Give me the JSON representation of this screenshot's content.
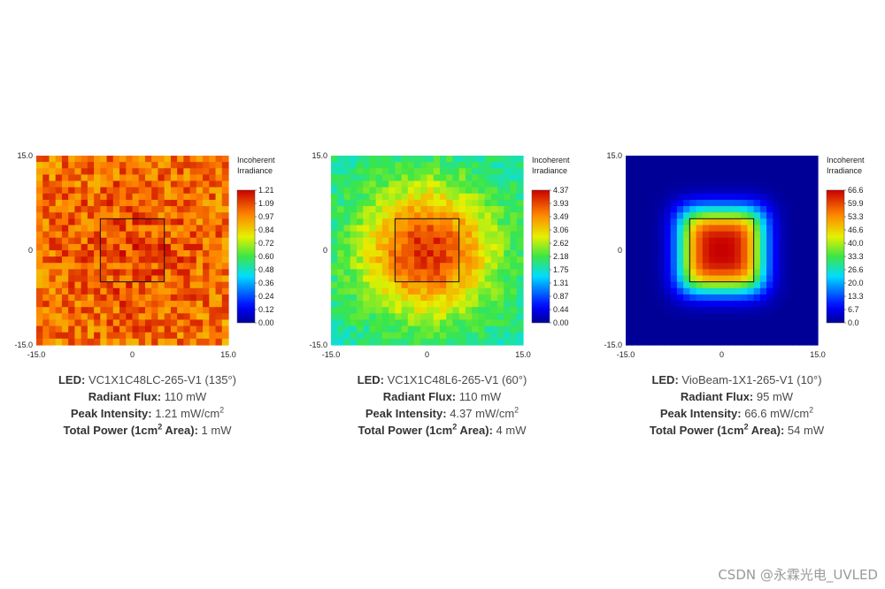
{
  "chart_data": [
    {
      "type": "heatmap",
      "model": "uniform",
      "colorbar_title": [
        "Incoherent",
        "Irradiance"
      ],
      "colorbar_ticks": [
        "1.21",
        "1.09",
        "0.97",
        "0.84",
        "0.72",
        "0.60",
        "0.48",
        "0.36",
        "0.24",
        "0.12",
        "0.00"
      ],
      "zlim": [
        0,
        1.21
      ],
      "xlim": [
        -15,
        15
      ],
      "ylim": [
        -15,
        15
      ],
      "x_ticks": [
        "-15.0",
        "0",
        "15.0"
      ],
      "y_ticks": [
        "15.0",
        "0",
        "-15.0"
      ],
      "target_box": [
        -5,
        5,
        -5,
        5
      ],
      "led_label": "LED:",
      "led_value": "VC1X1C48LC-265-V1 (135°)",
      "flux_label": "Radiant Flux:",
      "flux_value": "110 mW",
      "peak_label": "Peak Intensity:",
      "peak_value": "1.21 mW/cm",
      "peak_sup": "2",
      "power_label_a": "Total Power (1cm",
      "power_sup": "2",
      "power_label_b": " Area):",
      "power_value": "1 mW"
    },
    {
      "type": "heatmap",
      "model": "gaussian",
      "colorbar_title": [
        "Incoherent",
        "Irradiance"
      ],
      "colorbar_ticks": [
        "4.37",
        "3.93",
        "3.49",
        "3.06",
        "2.62",
        "2.18",
        "1.75",
        "1.31",
        "0.87",
        "0.44",
        "0.00"
      ],
      "zlim": [
        0,
        4.37
      ],
      "xlim": [
        -15,
        15
      ],
      "ylim": [
        -15,
        15
      ],
      "x_ticks": [
        "-15.0",
        "0",
        "15.0"
      ],
      "y_ticks": [
        "15.0",
        "0",
        "-15.0"
      ],
      "target_box": [
        -5,
        5,
        -5,
        5
      ],
      "led_label": "LED:",
      "led_value": "VC1X1C48L6-265-V1 (60°)",
      "flux_label": "Radiant Flux:",
      "flux_value": "110 mW",
      "peak_label": "Peak Intensity:",
      "peak_value": "4.37 mW/cm",
      "peak_sup": "2",
      "power_label_a": "Total Power (1cm",
      "power_sup": "2",
      "power_label_b": " Area):",
      "power_value": "4 mW"
    },
    {
      "type": "heatmap",
      "model": "focused",
      "colorbar_title": [
        "Incoherent",
        "Irradiance"
      ],
      "colorbar_ticks": [
        "66.6",
        "59.9",
        "53.3",
        "46.6",
        "40.0",
        "33.3",
        "26.6",
        "20.0",
        "13.3",
        "6.7",
        "0.0"
      ],
      "zlim": [
        0,
        66.6
      ],
      "xlim": [
        -15,
        15
      ],
      "ylim": [
        -15,
        15
      ],
      "x_ticks": [
        "-15.0",
        "0",
        "15.0"
      ],
      "y_ticks": [
        "15.0",
        "0",
        "-15.0"
      ],
      "target_box": [
        -5,
        5,
        -5,
        5
      ],
      "led_label": "LED:",
      "led_value": "VioBeam-1X1-265-V1 (10°)",
      "flux_label": "Radiant Flux:",
      "flux_value": "95 mW",
      "peak_label": "Peak Intensity:",
      "peak_value": "66.6 mW/cm",
      "peak_sup": "2",
      "power_label_a": "Total Power (1cm",
      "power_sup": "2",
      "power_label_b": " Area):",
      "power_value": "54 mW"
    }
  ],
  "watermark": "CSDN @永霖光电_UVLED"
}
